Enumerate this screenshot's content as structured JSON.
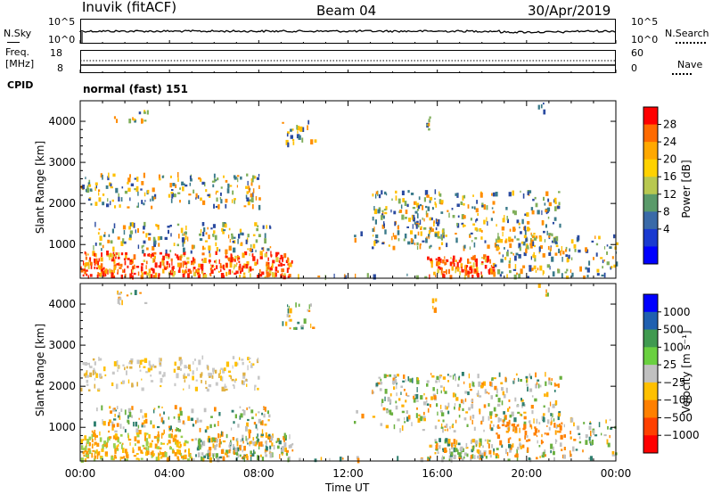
{
  "header": {
    "title": "Inuvik (fitACF)",
    "beam": "Beam 04",
    "date": "30/Apr/2019"
  },
  "nsky": {
    "label": "N.Sky",
    "left_top": "10^5",
    "left_bottom": "10^0",
    "right_top": "10^5",
    "right_bottom": "10^0",
    "right_label": "N.Search"
  },
  "freq": {
    "label_line1": "Freq.",
    "label_line2": "[MHz]",
    "left_top": "18",
    "left_bottom": "8",
    "right_top": "60",
    "right_bottom": "0",
    "right_label": "Nave"
  },
  "cpid": {
    "label": "CPID",
    "value": "normal (fast) 151"
  },
  "chart_data": [
    {
      "type": "heatmap",
      "name": "power",
      "ylabel": "Slant Range [km]",
      "ylim": [
        180,
        4500
      ],
      "yticks": [
        "1000",
        "2000",
        "3000",
        "4000"
      ],
      "colorbar_label": "Power [dB]",
      "colorbar_ticks": [
        "28",
        "24",
        "20",
        "16",
        "12",
        "8",
        "4"
      ],
      "colorbar_colors": [
        "#ff0000",
        "#ff6a00",
        "#ffa800",
        "#ffd200",
        "#b8c850",
        "#5a9a6a",
        "#3a6aa8",
        "#1a3ad0",
        "#0000ff"
      ],
      "echo_regions": [
        {
          "t_start": 0.0,
          "t_end": 9.5,
          "r_low": 200,
          "r_high": 800,
          "level": "high"
        },
        {
          "t_start": 0.5,
          "t_end": 8.5,
          "r_low": 800,
          "r_high": 1500,
          "level": "medium"
        },
        {
          "t_start": 0.0,
          "t_end": 8.0,
          "r_low": 1900,
          "r_high": 2700,
          "level": "medium"
        },
        {
          "t_start": 13.0,
          "t_end": 21.5,
          "r_low": 900,
          "r_high": 2300,
          "level": "medium"
        },
        {
          "t_start": 15.5,
          "t_end": 18.5,
          "r_low": 200,
          "r_high": 700,
          "level": "high"
        },
        {
          "t_start": 18.5,
          "t_end": 24.0,
          "r_low": 200,
          "r_high": 1200,
          "level": "medium"
        }
      ]
    },
    {
      "type": "heatmap",
      "name": "velocity",
      "ylabel": "Slant Range [km]",
      "ylim": [
        180,
        4500
      ],
      "yticks": [
        "1000",
        "2000",
        "3000",
        "4000"
      ],
      "xlabel": "Time UT",
      "xticks": [
        "00:00",
        "04:00",
        "08:00",
        "12:00",
        "16:00",
        "20:00",
        "00:00"
      ],
      "colorbar_label": "Velocity [m s⁻¹]",
      "colorbar_ticks": [
        "1000",
        "500",
        "100",
        "25",
        "−25",
        "−100",
        "−500",
        "−1000"
      ],
      "colorbar_colors": [
        "#0000ff",
        "#2060b0",
        "#409a50",
        "#6ad040",
        "#c0c0c0",
        "#ffc000",
        "#ff8000",
        "#ff4000",
        "#ff0000"
      ]
    }
  ]
}
